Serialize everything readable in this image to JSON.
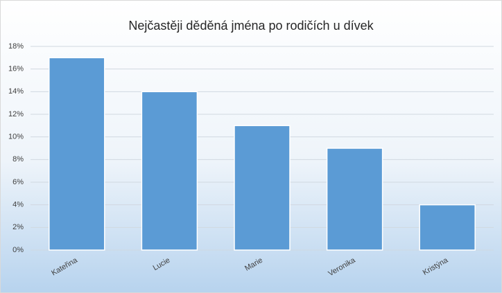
{
  "chart_data": {
    "type": "bar",
    "title": "Nejčastěji děděná jména po rodičích u dívek",
    "categories": [
      "Kateřina",
      "Lucie",
      "Marie",
      "Veronika",
      "Kristýna"
    ],
    "values": [
      17,
      14,
      11,
      9,
      4
    ],
    "color": "#5b9bd5",
    "ylim": [
      0,
      18
    ],
    "yticks": [
      {
        "value": 0,
        "label": "0%"
      },
      {
        "value": 2,
        "label": "2%"
      },
      {
        "value": 4,
        "label": "4%"
      },
      {
        "value": 6,
        "label": "6%"
      },
      {
        "value": 8,
        "label": "8%"
      },
      {
        "value": 10,
        "label": "10%"
      },
      {
        "value": 12,
        "label": "12%"
      },
      {
        "value": 14,
        "label": "14%"
      },
      {
        "value": 16,
        "label": "16%"
      },
      {
        "value": 18,
        "label": "18%"
      }
    ],
    "grid": true
  }
}
